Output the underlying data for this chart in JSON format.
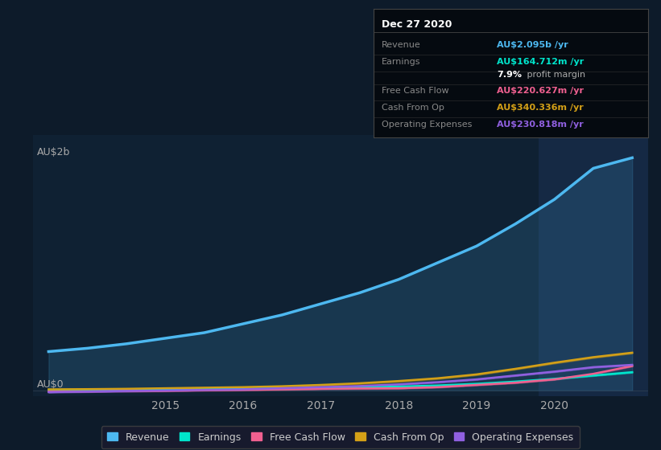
{
  "background_color": "#0d1b2a",
  "chart_area_color": "#0f2133",
  "ylabel_text": "AU$2b",
  "ylabel2_text": "AU$0",
  "x_ticks": [
    2015,
    2016,
    2017,
    2018,
    2019,
    2020
  ],
  "years": [
    2013.5,
    2014,
    2014.5,
    2015,
    2015.5,
    2016,
    2016.5,
    2017,
    2017.5,
    2018,
    2018.5,
    2019,
    2019.5,
    2020,
    2020.5,
    2021
  ],
  "revenue": [
    0.35,
    0.38,
    0.42,
    0.47,
    0.52,
    0.6,
    0.68,
    0.78,
    0.88,
    1.0,
    1.15,
    1.3,
    1.5,
    1.72,
    2.0,
    2.095
  ],
  "earnings": [
    0.005,
    0.006,
    0.007,
    0.01,
    0.012,
    0.015,
    0.018,
    0.022,
    0.028,
    0.035,
    0.045,
    0.06,
    0.08,
    0.105,
    0.135,
    0.1647
  ],
  "free_cash_flow": [
    -0.01,
    -0.008,
    -0.005,
    -0.003,
    0.002,
    0.005,
    0.01,
    0.015,
    0.018,
    0.02,
    0.03,
    0.05,
    0.07,
    0.1,
    0.15,
    0.2206
  ],
  "cash_from_op": [
    0.01,
    0.012,
    0.015,
    0.02,
    0.025,
    0.03,
    0.038,
    0.05,
    0.065,
    0.085,
    0.11,
    0.145,
    0.195,
    0.25,
    0.3,
    0.3403
  ],
  "op_expenses": [
    -0.015,
    -0.01,
    -0.005,
    0.0,
    0.005,
    0.01,
    0.02,
    0.03,
    0.04,
    0.055,
    0.075,
    0.1,
    0.135,
    0.17,
    0.21,
    0.2308
  ],
  "revenue_color": "#4db8f0",
  "earnings_color": "#00e5cc",
  "free_cash_flow_color": "#f06090",
  "cash_from_op_color": "#d4a017",
  "op_expenses_color": "#9060e0",
  "info_box": {
    "title": "Dec 27 2020",
    "rows": [
      {
        "label": "Revenue",
        "value": "AU$2.095b /yr",
        "value_color": "#4db8f0"
      },
      {
        "label": "Earnings",
        "value": "AU$164.712m /yr",
        "value_color": "#00e5cc"
      },
      {
        "label": "",
        "value": "7.9% profit margin",
        "value_color": "#ffffff"
      },
      {
        "label": "Free Cash Flow",
        "value": "AU$220.627m /yr",
        "value_color": "#f06090"
      },
      {
        "label": "Cash From Op",
        "value": "AU$340.336m /yr",
        "value_color": "#d4a017"
      },
      {
        "label": "Operating Expenses",
        "value": "AU$230.818m /yr",
        "value_color": "#9060e0"
      }
    ]
  },
  "legend_items": [
    {
      "label": "Revenue",
      "color": "#4db8f0"
    },
    {
      "label": "Earnings",
      "color": "#00e5cc"
    },
    {
      "label": "Free Cash Flow",
      "color": "#f06090"
    },
    {
      "label": "Cash From Op",
      "color": "#d4a017"
    },
    {
      "label": "Operating Expenses",
      "color": "#9060e0"
    }
  ],
  "xlim": [
    2013.3,
    2021.2
  ],
  "ylim": [
    -0.05,
    2.3
  ],
  "highlight_x_start": 2019.8,
  "highlight_x_end": 2021.2,
  "highlight_color": "#1a3050"
}
